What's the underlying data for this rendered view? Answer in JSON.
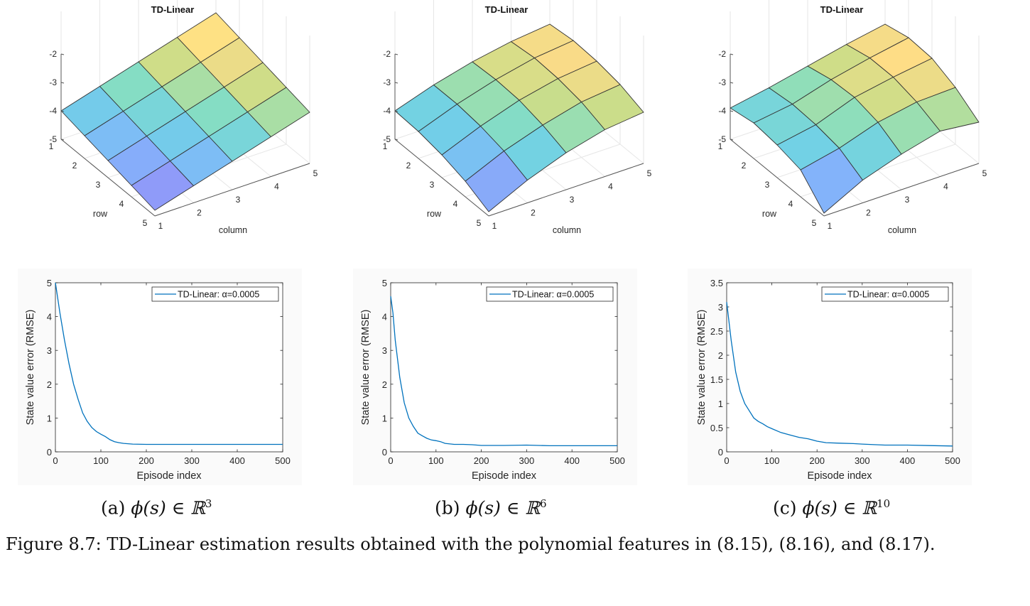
{
  "figure": {
    "caption": "Figure 8.7: TD-Linear estimation results obtained with the polynomial features in (8.15), (8.16), and (8.17).",
    "subcaptions": [
      {
        "prefix": "(a) ",
        "math": "ϕ(s) ∈ ℝ",
        "sup": "3"
      },
      {
        "prefix": "(b) ",
        "math": "ϕ(s) ∈ ℝ",
        "sup": "6"
      },
      {
        "prefix": "(c) ",
        "math": "ϕ(s) ∈ ℝ",
        "sup": "10"
      }
    ]
  },
  "chart_data": [
    {
      "type": "surface",
      "title": "TD-Linear",
      "xlabel": "column",
      "ylabel": "row",
      "zlabel": "",
      "xticks": [
        "1",
        "2",
        "3",
        "4",
        "5"
      ],
      "yticks": [
        "1",
        "2",
        "3",
        "4",
        "5"
      ],
      "zticks": [
        "-2",
        "-3",
        "-4",
        "-5"
      ],
      "zlim": [
        -5,
        -2
      ],
      "z": [
        [
          -4.0,
          -3.6,
          -3.2,
          -2.8,
          -2.4
        ],
        [
          -4.2,
          -3.8,
          -3.4,
          -3.0,
          -2.6
        ],
        [
          -4.4,
          -4.0,
          -3.6,
          -3.2,
          -2.8
        ],
        [
          -4.6,
          -4.2,
          -3.8,
          -3.4,
          -3.0
        ],
        [
          -4.8,
          -4.4,
          -4.0,
          -3.6,
          -3.2
        ]
      ]
    },
    {
      "type": "surface",
      "title": "TD-Linear",
      "xlabel": "column",
      "ylabel": "row",
      "zlabel": "",
      "xticks": [
        "1",
        "2",
        "3",
        "4",
        "5"
      ],
      "yticks": [
        "1",
        "2",
        "3",
        "4",
        "5"
      ],
      "zticks": [
        "-2",
        "-3",
        "-4",
        "-5"
      ],
      "zlim": [
        -5,
        -2
      ],
      "z": [
        [
          -4.0,
          -3.55,
          -3.2,
          -2.95,
          -2.8
        ],
        [
          -4.05,
          -3.55,
          -3.15,
          -2.85,
          -2.7
        ],
        [
          -4.2,
          -3.65,
          -3.2,
          -2.9,
          -2.75
        ],
        [
          -4.45,
          -3.85,
          -3.4,
          -3.05,
          -2.9
        ],
        [
          -4.85,
          -4.2,
          -3.7,
          -3.35,
          -3.2
        ]
      ]
    },
    {
      "type": "surface",
      "title": "TD-Linear",
      "xlabel": "column",
      "ylabel": "row",
      "zlabel": "",
      "xticks": [
        "1",
        "2",
        "3",
        "4",
        "5"
      ],
      "yticks": [
        "1",
        "2",
        "3",
        "4",
        "5"
      ],
      "zticks": [
        "-2",
        "-3",
        "-4",
        "-5"
      ],
      "zlim": [
        -5,
        -2
      ],
      "z": [
        [
          -3.9,
          -3.65,
          -3.35,
          -3.05,
          -2.8
        ],
        [
          -3.75,
          -3.55,
          -3.15,
          -2.85,
          -2.6
        ],
        [
          -3.85,
          -3.6,
          -3.1,
          -2.85,
          -2.65
        ],
        [
          -4.05,
          -3.75,
          -3.3,
          -3.05,
          -3.0
        ],
        [
          -4.9,
          -4.2,
          -3.75,
          -3.4,
          -3.55
        ]
      ]
    },
    {
      "type": "line",
      "title": "",
      "xlabel": "Episode index",
      "ylabel": "State value error (RMSE)",
      "xlim": [
        0,
        500
      ],
      "ylim": [
        0,
        5
      ],
      "xticks": [
        0,
        100,
        200,
        300,
        400,
        500
      ],
      "yticks": [
        0,
        1,
        2,
        3,
        4,
        5
      ],
      "ytick_labels": [
        "0",
        "1",
        "2",
        "3",
        "4",
        "5"
      ],
      "legend": {
        "label": "TD-Linear: α=0.0005",
        "position": "top-right"
      },
      "series": [
        {
          "name": "TD-Linear: α=0.0005",
          "x": [
            0,
            10,
            20,
            30,
            40,
            50,
            60,
            70,
            80,
            90,
            100,
            110,
            120,
            130,
            140,
            150,
            170,
            200,
            250,
            300,
            350,
            400,
            450,
            500
          ],
          "y": [
            5.0,
            4.1,
            3.3,
            2.6,
            2.0,
            1.55,
            1.15,
            0.9,
            0.72,
            0.6,
            0.52,
            0.45,
            0.36,
            0.3,
            0.27,
            0.25,
            0.23,
            0.22,
            0.22,
            0.22,
            0.22,
            0.22,
            0.22,
            0.22
          ]
        }
      ]
    },
    {
      "type": "line",
      "title": "",
      "xlabel": "Episode index",
      "ylabel": "State value error (RMSE)",
      "xlim": [
        0,
        500
      ],
      "ylim": [
        0,
        5
      ],
      "xticks": [
        0,
        100,
        200,
        300,
        400,
        500
      ],
      "yticks": [
        0,
        1,
        2,
        3,
        4,
        5
      ],
      "ytick_labels": [
        "0",
        "1",
        "2",
        "3",
        "4",
        "5"
      ],
      "legend": {
        "label": "TD-Linear: α=0.0005",
        "position": "top-right"
      },
      "series": [
        {
          "name": "TD-Linear: α=0.0005",
          "x": [
            0,
            5,
            10,
            20,
            30,
            40,
            50,
            60,
            70,
            80,
            90,
            100,
            110,
            120,
            140,
            160,
            180,
            200,
            250,
            300,
            350,
            400,
            450,
            500
          ],
          "y": [
            4.6,
            4.1,
            3.3,
            2.2,
            1.45,
            1.0,
            0.75,
            0.55,
            0.47,
            0.4,
            0.35,
            0.33,
            0.3,
            0.25,
            0.22,
            0.22,
            0.21,
            0.19,
            0.19,
            0.2,
            0.18,
            0.18,
            0.18,
            0.18
          ]
        }
      ]
    },
    {
      "type": "line",
      "title": "",
      "xlabel": "Episode index",
      "ylabel": "State value error (RMSE)",
      "xlim": [
        0,
        500
      ],
      "ylim": [
        0,
        3.5
      ],
      "xticks": [
        0,
        100,
        200,
        300,
        400,
        500
      ],
      "yticks": [
        0,
        0.5,
        1,
        1.5,
        2,
        2.5,
        3,
        3.5
      ],
      "ytick_labels": [
        "0",
        "0.5",
        "1",
        "1.5",
        "2",
        "2.5",
        "3",
        "3.5"
      ],
      "legend": {
        "label": "TD-Linear: α=0.0005",
        "position": "top-right"
      },
      "series": [
        {
          "name": "TD-Linear: α=0.0005",
          "x": [
            0,
            5,
            10,
            20,
            30,
            40,
            50,
            60,
            70,
            80,
            90,
            100,
            120,
            140,
            160,
            180,
            200,
            220,
            250,
            280,
            300,
            350,
            400,
            450,
            500
          ],
          "y": [
            3.1,
            2.7,
            2.3,
            1.65,
            1.25,
            1.0,
            0.85,
            0.7,
            0.63,
            0.58,
            0.52,
            0.48,
            0.4,
            0.35,
            0.3,
            0.27,
            0.22,
            0.19,
            0.18,
            0.17,
            0.16,
            0.14,
            0.14,
            0.13,
            0.12
          ]
        }
      ]
    }
  ]
}
